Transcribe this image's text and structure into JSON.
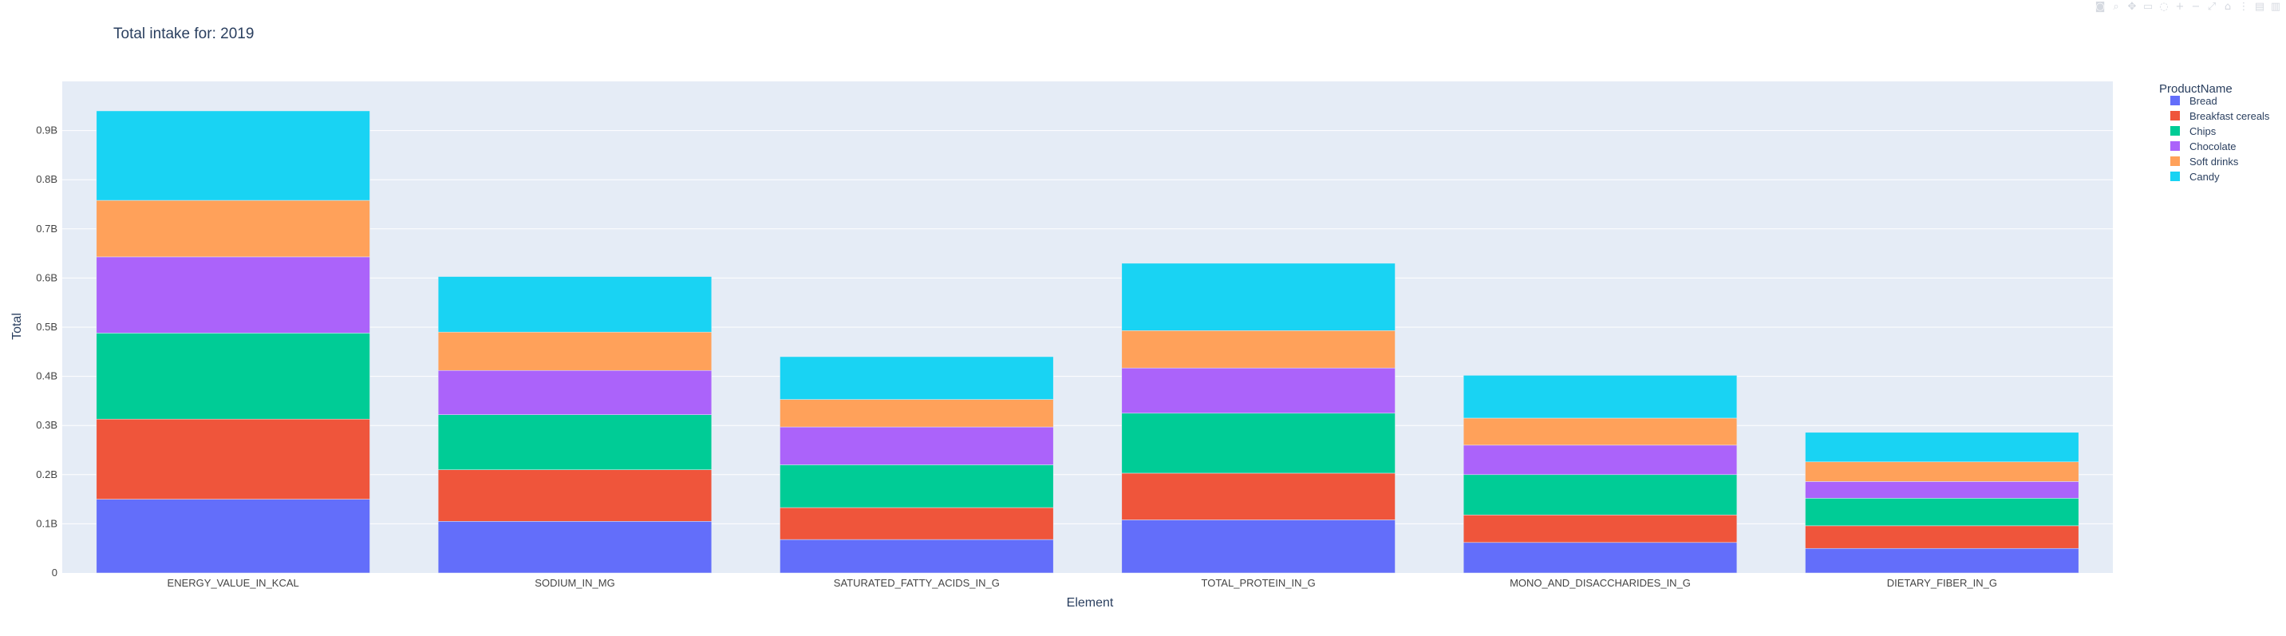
{
  "chart_data": {
    "type": "bar",
    "barmode": "stack",
    "title": "Total intake for: 2019",
    "xlabel": "Element",
    "ylabel": "Total",
    "ylim": [
      0,
      1000000000
    ],
    "yticks": [
      {
        "value": 0,
        "label": "0"
      },
      {
        "value": 100000000,
        "label": "0.1B"
      },
      {
        "value": 200000000,
        "label": "0.2B"
      },
      {
        "value": 300000000,
        "label": "0.3B"
      },
      {
        "value": 400000000,
        "label": "0.4B"
      },
      {
        "value": 500000000,
        "label": "0.5B"
      },
      {
        "value": 600000000,
        "label": "0.6B"
      },
      {
        "value": 700000000,
        "label": "0.7B"
      },
      {
        "value": 800000000,
        "label": "0.8B"
      },
      {
        "value": 900000000,
        "label": "0.9B"
      }
    ],
    "categories": [
      "ENERGY_VALUE_IN_KCAL",
      "SODIUM_IN_MG",
      "SATURATED_FATTY_ACIDS_IN_G",
      "TOTAL_PROTEIN_IN_G",
      "MONO_AND_DISACCHARIDES_IN_G",
      "DIETARY_FIBER_IN_G"
    ],
    "legend_title": "ProductName",
    "legend_position": "top-right",
    "grid": true,
    "series": [
      {
        "name": "Bread",
        "color": "#636efa",
        "values": [
          150000000,
          105000000,
          68000000,
          108000000,
          62000000,
          50000000
        ]
      },
      {
        "name": "Breakfast cereals",
        "color": "#EF553B",
        "values": [
          163000000,
          105000000,
          65000000,
          95000000,
          56000000,
          46000000
        ]
      },
      {
        "name": "Chips",
        "color": "#00cc96",
        "values": [
          175000000,
          112000000,
          87000000,
          122000000,
          82000000,
          56000000
        ]
      },
      {
        "name": "Chocolate",
        "color": "#ab63fa",
        "values": [
          155000000,
          90000000,
          77000000,
          92000000,
          60000000,
          34000000
        ]
      },
      {
        "name": "Soft drinks",
        "color": "#FFA15A",
        "values": [
          115000000,
          78000000,
          56000000,
          76000000,
          55000000,
          40000000
        ]
      },
      {
        "name": "Candy",
        "color": "#19d3f3",
        "values": [
          182000000,
          113000000,
          87000000,
          137000000,
          87000000,
          60000000
        ]
      }
    ]
  },
  "modebar": {
    "icons": [
      "camera-icon",
      "zoom-icon",
      "pan-icon",
      "box-select-icon",
      "lasso-icon",
      "zoom-in-icon",
      "zoom-out-icon",
      "autoscale-icon",
      "reset-axes-icon",
      "spike-lines-icon",
      "hover-closest-icon",
      "hover-compare-icon"
    ],
    "glyphs": [
      "◙",
      "⌕",
      "✥",
      "▭",
      "◌",
      "+",
      "−",
      "⤢",
      "⌂",
      "⋮",
      "▤",
      "▥"
    ]
  }
}
